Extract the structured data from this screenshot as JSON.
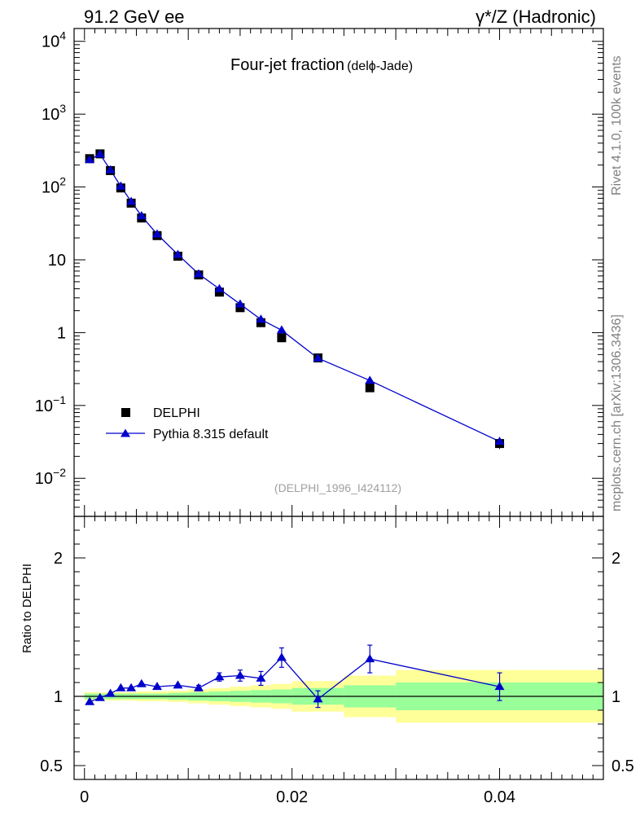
{
  "header": {
    "left": "91.2 GeV ee",
    "right": "γ*/Z (Hadronic)"
  },
  "side_labels": {
    "rivet": "Rivet 4.1.0,  100k events",
    "mcplots": "mcplots.cern.ch [arXiv:1306.3436]"
  },
  "chart_data": {
    "type": "line",
    "title": "Four-jet fraction",
    "title_suffix": "(delϕ-Jade)",
    "analysis_id": "(DELPHI_1996_I424112)",
    "xlabel": "",
    "ylabel": "",
    "ratio_ylabel": "Ratio to DELPHI",
    "xlim": [
      -0.001,
      0.05
    ],
    "ylim": [
      0.003,
      15000
    ],
    "yscale": "log",
    "ratio_ylim": [
      0.4,
      2.3
    ],
    "x_ticks": [
      "0",
      "0.02",
      "0.04"
    ],
    "y_ticks": [
      {
        "base": "10",
        "exp": "4"
      },
      {
        "base": "10",
        "exp": "3"
      },
      {
        "base": "10",
        "exp": "2"
      },
      {
        "base": "10",
        "exp": ""
      },
      {
        "base": "1",
        "exp": ""
      },
      {
        "base": "10",
        "exp": "−1"
      },
      {
        "base": "10",
        "exp": "−2"
      }
    ],
    "ratio_ticks": [
      "2",
      "1",
      "0.5"
    ],
    "legend": {
      "position": "lower-left",
      "entries": [
        {
          "label": "DELPHI",
          "marker": "square",
          "color": "#000000"
        },
        {
          "label": "Pythia 8.315 default",
          "marker": "triangle",
          "color": "#0000cc"
        }
      ]
    },
    "bins": [
      {
        "lo": 0.0,
        "hi": 0.001
      },
      {
        "lo": 0.001,
        "hi": 0.002
      },
      {
        "lo": 0.002,
        "hi": 0.003
      },
      {
        "lo": 0.003,
        "hi": 0.004
      },
      {
        "lo": 0.004,
        "hi": 0.005
      },
      {
        "lo": 0.005,
        "hi": 0.006
      },
      {
        "lo": 0.006,
        "hi": 0.008
      },
      {
        "lo": 0.008,
        "hi": 0.01
      },
      {
        "lo": 0.01,
        "hi": 0.012
      },
      {
        "lo": 0.012,
        "hi": 0.014
      },
      {
        "lo": 0.014,
        "hi": 0.016
      },
      {
        "lo": 0.016,
        "hi": 0.018
      },
      {
        "lo": 0.018,
        "hi": 0.02
      },
      {
        "lo": 0.02,
        "hi": 0.025
      },
      {
        "lo": 0.025,
        "hi": 0.03
      },
      {
        "lo": 0.03,
        "hi": 0.05
      }
    ],
    "series": [
      {
        "name": "DELPHI",
        "x": [
          0.0005,
          0.0015,
          0.0025,
          0.0035,
          0.0045,
          0.0055,
          0.007,
          0.009,
          0.011,
          0.013,
          0.015,
          0.017,
          0.019,
          0.0225,
          0.0275,
          0.04
        ],
        "values": [
          245,
          285,
          168,
          97,
          60,
          37.5,
          21.5,
          11.2,
          6.2,
          3.6,
          2.2,
          1.37,
          0.85,
          0.45,
          0.175,
          0.03
        ],
        "rel_err": [
          0.03,
          0.03,
          0.03,
          0.03,
          0.03,
          0.035,
          0.035,
          0.04,
          0.05,
          0.06,
          0.07,
          0.08,
          0.09,
          0.1,
          0.13,
          0.16
        ]
      },
      {
        "name": "Pythia 8.315 default",
        "x": [
          0.0005,
          0.0015,
          0.0025,
          0.0035,
          0.0045,
          0.0055,
          0.007,
          0.009,
          0.011,
          0.013,
          0.015,
          0.017,
          0.019,
          0.0225,
          0.0275,
          0.04
        ],
        "values": [
          236,
          282,
          171,
          102,
          63,
          40,
          22.5,
          11.8,
          6.4,
          3.98,
          2.46,
          1.52,
          1.08,
          0.445,
          0.22,
          0.032
        ],
        "ratio": [
          0.96,
          0.99,
          1.02,
          1.06,
          1.06,
          1.09,
          1.07,
          1.08,
          1.06,
          1.14,
          1.15,
          1.13,
          1.28,
          0.98,
          1.27,
          1.07
        ],
        "ratio_err": [
          0.005,
          0.006,
          0.007,
          0.008,
          0.009,
          0.01,
          0.012,
          0.015,
          0.02,
          0.03,
          0.04,
          0.05,
          0.07,
          0.06,
          0.1,
          0.1
        ]
      }
    ],
    "ratio_bands": {
      "green_half_width": [
        0.02,
        0.02,
        0.02,
        0.02,
        0.02,
        0.02,
        0.02,
        0.025,
        0.03,
        0.035,
        0.04,
        0.045,
        0.05,
        0.06,
        0.08,
        0.1
      ],
      "yellow_half_width": [
        0.03,
        0.03,
        0.03,
        0.03,
        0.03,
        0.035,
        0.035,
        0.04,
        0.05,
        0.06,
        0.07,
        0.08,
        0.09,
        0.11,
        0.15,
        0.19
      ]
    }
  }
}
